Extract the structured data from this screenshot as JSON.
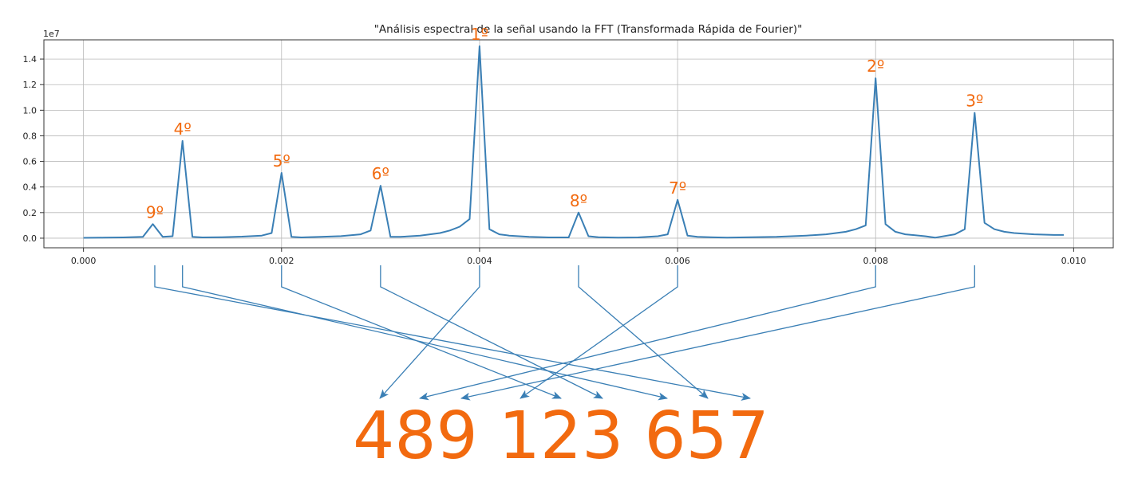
{
  "chart_data": {
    "type": "line",
    "title": "\"Análisis espectral de la señal usando la FFT (Transformada Rápida de Fourier)\"",
    "y_multiplier_label": "1e7",
    "xlim": [
      -0.0004,
      0.0104
    ],
    "ylim": [
      -0.075,
      1.55
    ],
    "grid": true,
    "x_ticks": [
      0.0,
      0.002,
      0.004,
      0.006,
      0.008,
      0.01
    ],
    "x_tick_labels": [
      "0.000",
      "0.002",
      "0.004",
      "0.006",
      "0.008",
      "0.010"
    ],
    "y_ticks": [
      0.0,
      0.2,
      0.4,
      0.6,
      0.8,
      1.0,
      1.2,
      1.4
    ],
    "y_tick_labels": [
      "0.0",
      "0.2",
      "0.4",
      "0.6",
      "0.8",
      "1.0",
      "1.2",
      "1.4"
    ],
    "series": [
      {
        "color": "#3a7fb5",
        "x": [
          0.0,
          0.0002,
          0.0004,
          0.0006,
          0.0007,
          0.0008,
          0.0009,
          0.001,
          0.0011,
          0.0012,
          0.0014,
          0.0016,
          0.0018,
          0.0019,
          0.002,
          0.0021,
          0.0022,
          0.0024,
          0.0026,
          0.0028,
          0.0029,
          0.003,
          0.0031,
          0.0032,
          0.0034,
          0.0036,
          0.0037,
          0.0038,
          0.0039,
          0.004,
          0.0041,
          0.0042,
          0.0043,
          0.0045,
          0.0047,
          0.0049,
          0.005,
          0.0051,
          0.0052,
          0.0054,
          0.0056,
          0.0058,
          0.0059,
          0.006,
          0.0061,
          0.0062,
          0.0065,
          0.007,
          0.0073,
          0.0075,
          0.0077,
          0.0078,
          0.0079,
          0.008,
          0.0081,
          0.0082,
          0.0083,
          0.0085,
          0.0086,
          0.0088,
          0.0089,
          0.009,
          0.0091,
          0.0092,
          0.0093,
          0.0094,
          0.0096,
          0.0098,
          0.0099
        ],
        "y": [
          0.003,
          0.004,
          0.006,
          0.01,
          0.11,
          0.01,
          0.015,
          0.76,
          0.01,
          0.006,
          0.008,
          0.012,
          0.02,
          0.04,
          0.51,
          0.01,
          0.006,
          0.01,
          0.016,
          0.03,
          0.06,
          0.41,
          0.01,
          0.01,
          0.02,
          0.04,
          0.06,
          0.09,
          0.15,
          1.5,
          0.07,
          0.03,
          0.02,
          0.01,
          0.006,
          0.006,
          0.2,
          0.015,
          0.008,
          0.004,
          0.006,
          0.015,
          0.03,
          0.3,
          0.02,
          0.01,
          0.004,
          0.01,
          0.02,
          0.03,
          0.05,
          0.07,
          0.1,
          1.25,
          0.11,
          0.05,
          0.03,
          0.015,
          0.004,
          0.03,
          0.07,
          0.98,
          0.12,
          0.07,
          0.05,
          0.04,
          0.03,
          0.025,
          0.025
        ]
      }
    ],
    "peak_labels": [
      {
        "text": "9º",
        "x": 0.00072,
        "y": 0.11
      },
      {
        "text": "4º",
        "x": 0.001,
        "y": 0.76
      },
      {
        "text": "5º",
        "x": 0.002,
        "y": 0.51
      },
      {
        "text": "6º",
        "x": 0.003,
        "y": 0.41
      },
      {
        "text": "1º",
        "x": 0.004,
        "y": 1.5
      },
      {
        "text": "8º",
        "x": 0.005,
        "y": 0.2
      },
      {
        "text": "7º",
        "x": 0.006,
        "y": 0.3
      },
      {
        "text": "2º",
        "x": 0.008,
        "y": 1.25
      },
      {
        "text": "3º",
        "x": 0.009,
        "y": 0.98
      }
    ],
    "digits_caption": "489 123 657",
    "digits": [
      "4",
      "8",
      "9",
      "1",
      "2",
      "3",
      "6",
      "5",
      "7"
    ],
    "arrow_map": [
      {
        "from_x": 0.00072,
        "to_digit": 8
      },
      {
        "from_x": 0.001,
        "to_digit": 6
      },
      {
        "from_x": 0.002,
        "to_digit": 4
      },
      {
        "from_x": 0.003,
        "to_digit": 5
      },
      {
        "from_x": 0.004,
        "to_digit": 0
      },
      {
        "from_x": 0.005,
        "to_digit": 7
      },
      {
        "from_x": 0.006,
        "to_digit": 3
      },
      {
        "from_x": 0.008,
        "to_digit": 1
      },
      {
        "from_x": 0.009,
        "to_digit": 2
      }
    ],
    "colors": {
      "line": "#3a7fb5",
      "annotation": "#f26a0f",
      "grid": "#b8b8b8",
      "axis": "#333333",
      "text": "#222222"
    }
  }
}
